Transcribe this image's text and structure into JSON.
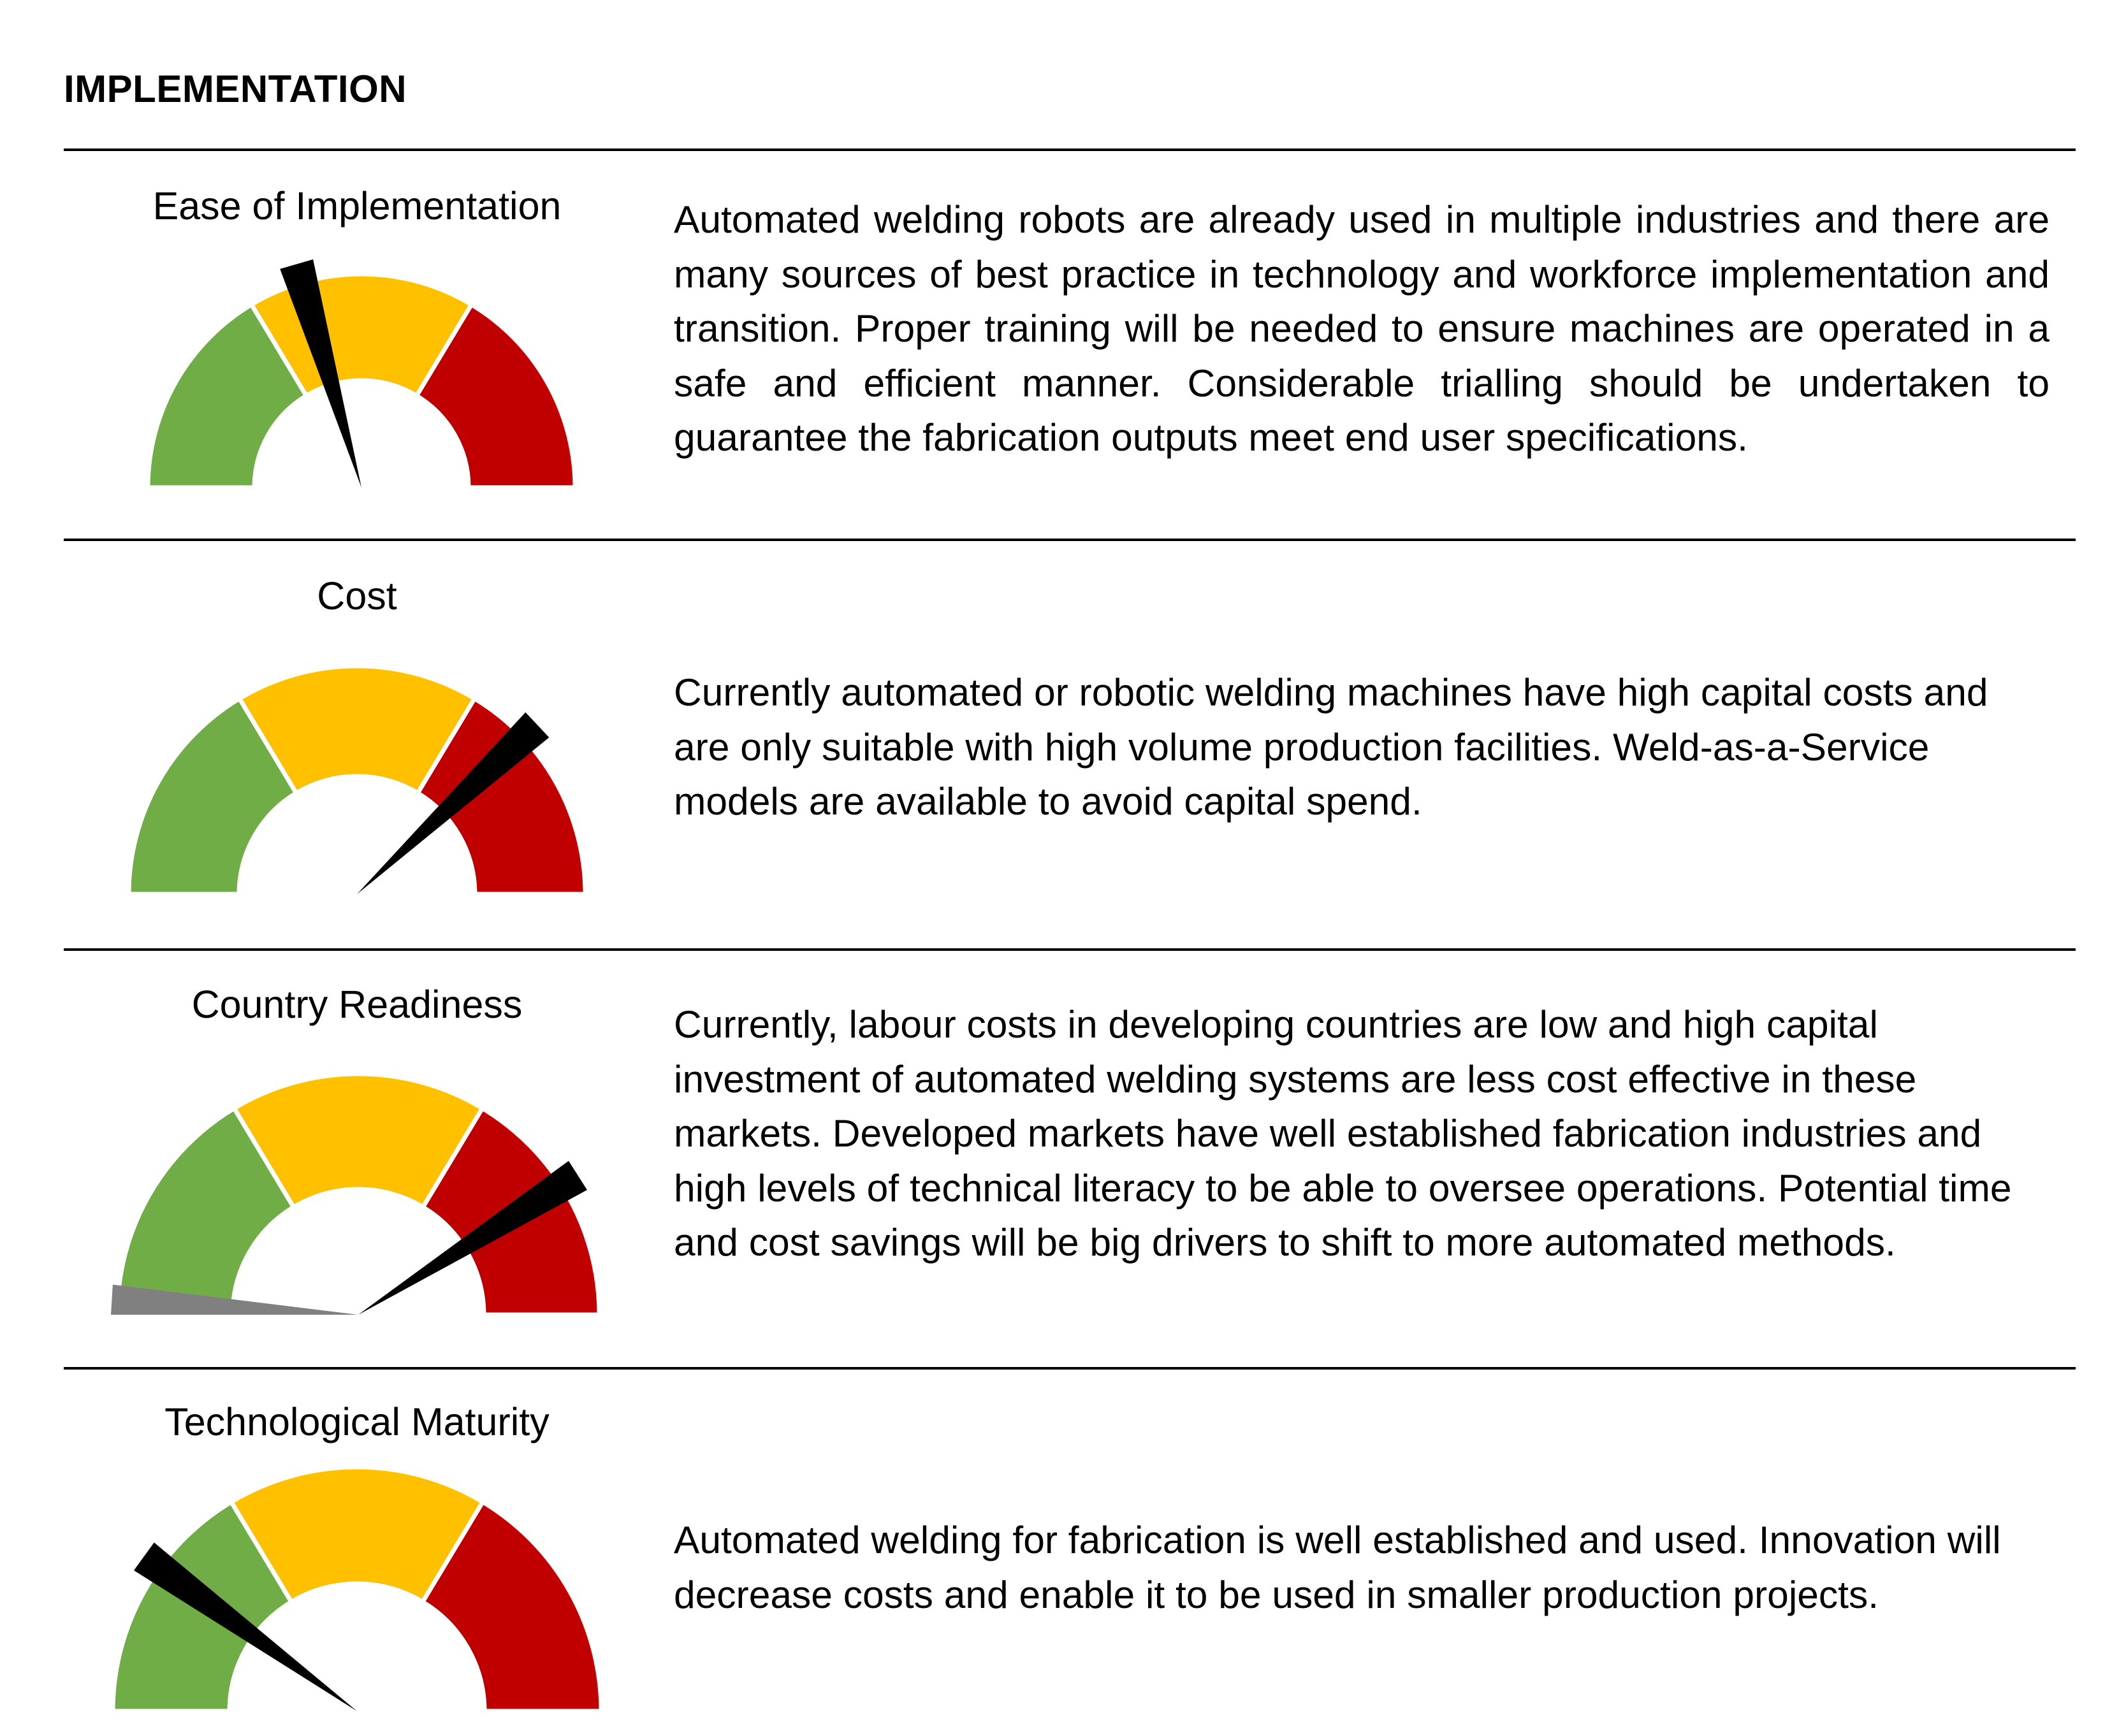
{
  "heading": "IMPLEMENTATION",
  "colors": {
    "green": "#70ad47",
    "amber": "#ffc000",
    "red": "#c00000",
    "needle": "#000000",
    "grey": "#808080"
  },
  "rows": [
    {
      "title": "Ease of Implementation",
      "text": "Automated welding robots are already used in multiple industries and there are many sources of best practice in technology and workforce implementation and transition. Proper training will be needed to ensure machines are operated in a safe and efficient manner. Considerable trialling should be undertaken to guarantee the fabrication outputs meet end user specifications.",
      "needle_level": 0.41
    },
    {
      "title": "Cost",
      "text": "Currently automated or robotic welding machines have high capital costs and are only suitable with high volume production facilities. Weld-as-a-Service models are available to avoid capital spend.",
      "needle_level": 0.76
    },
    {
      "title": "Country Readiness",
      "text": "Currently, labour costs in developing countries are low and high capital investment of automated welding systems are less cost effective in these markets. Developed markets have well established fabrication industries and high levels of technical literacy to be able to oversee operations. Potential time and cost savings will be big drivers to shift to more automated methods.",
      "needle_level": 0.82
    },
    {
      "title": "Technological Maturity",
      "text": "Automated welding for fabrication is well established and used. Innovation will decrease costs and enable it to be used in smaller production projects.",
      "needle_level": 0.2
    }
  ]
}
